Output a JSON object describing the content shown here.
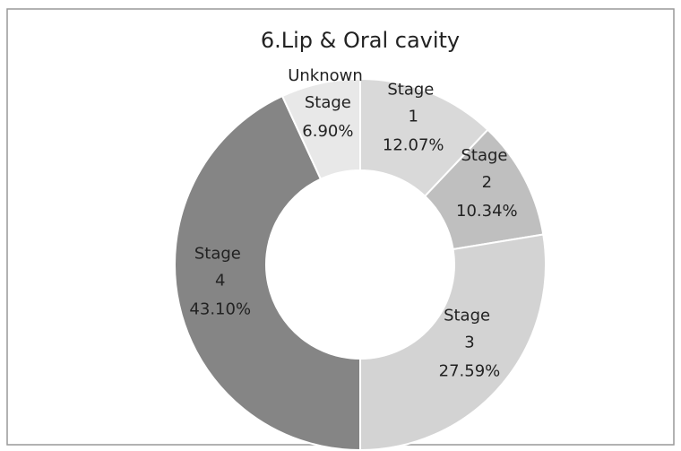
{
  "chart_data": {
    "type": "donut",
    "title": "6.Lip & Oral cavity",
    "categories": [
      "Stage 1",
      "Stage 2",
      "Stage 3",
      "Stage 4",
      "Unknown Stage"
    ],
    "values": [
      12.07,
      10.34,
      27.59,
      43.1,
      6.9
    ],
    "value_labels": [
      "12.07%",
      "10.34%",
      "27.59%",
      "43.10%",
      "6.90%"
    ],
    "colors": [
      "#d9d9d9",
      "#bfbfbf",
      "#d3d3d3",
      "#858585",
      "#e8e8e8"
    ]
  }
}
